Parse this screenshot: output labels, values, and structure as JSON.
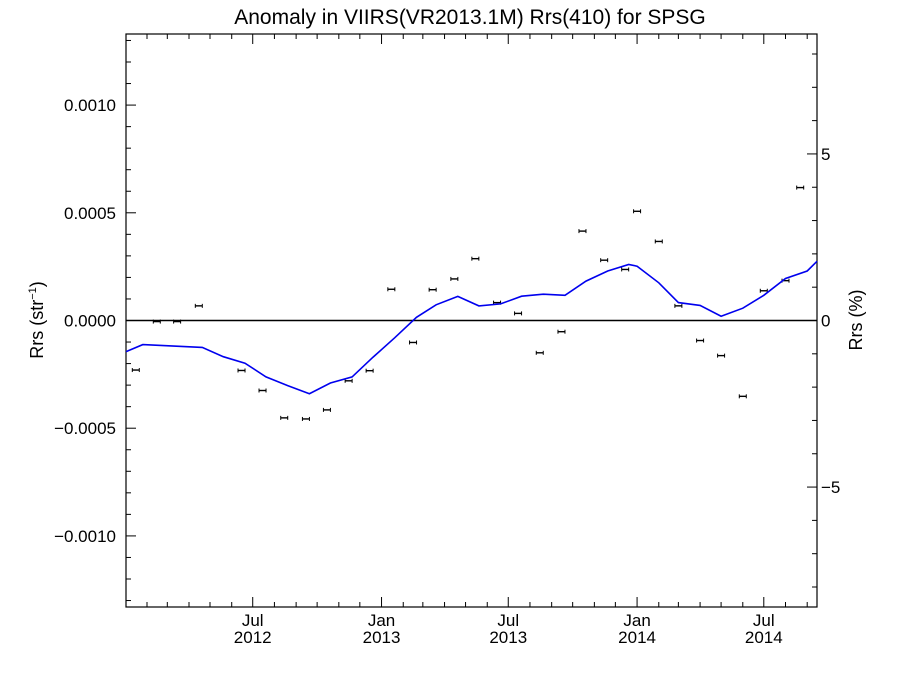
{
  "chart_data": {
    "type": "line",
    "title": "Anomaly in VIIRS(VR2013.1M) Rrs(410) for SPSG",
    "ylabel_left": "Rrs (str",
    "ylabel_left_sup": "−1",
    "ylabel_left_close": ")",
    "ylabel_right": "Rrs (%)",
    "ylim_left": [
      -0.00133,
      0.00133
    ],
    "ylim_right": [
      -8.6,
      8.6
    ],
    "xlim": [
      "2012-01-02",
      "2014-09-15"
    ],
    "left_ticks": [
      {
        "value": 0.001,
        "label": "0.0010"
      },
      {
        "value": 0.0005,
        "label": "0.0005"
      },
      {
        "value": 0.0,
        "label": "0.0000"
      },
      {
        "value": -0.0005,
        "label": "−0.0005"
      },
      {
        "value": -0.001,
        "label": "−0.0010"
      }
    ],
    "right_ticks": [
      {
        "value": 5,
        "label": "5"
      },
      {
        "value": 0,
        "label": "0"
      },
      {
        "value": -5,
        "label": "−5"
      }
    ],
    "x_ticks": [
      {
        "date": "2012-07-01",
        "line1": "Jul",
        "line2": "2012"
      },
      {
        "date": "2013-01-01",
        "line1": "Jan",
        "line2": "2013"
      },
      {
        "date": "2013-07-01",
        "line1": "Jul",
        "line2": "2013"
      },
      {
        "date": "2014-01-01",
        "line1": "Jan",
        "line2": "2014"
      },
      {
        "date": "2014-07-01",
        "line1": "Jul",
        "line2": "2014"
      }
    ],
    "zero_line": 0.0,
    "series": [
      {
        "kind": "points_with_error_bars",
        "color": "#000000",
        "points": [
          {
            "x": "2012-01-16",
            "y": -0.00023
          },
          {
            "x": "2012-02-15",
            "y": -5e-06
          },
          {
            "x": "2012-03-15",
            "y": -5e-06
          },
          {
            "x": "2012-04-15",
            "y": 6.8e-05
          },
          {
            "x": "2012-06-15",
            "y": -0.000232
          },
          {
            "x": "2012-07-15",
            "y": -0.000325
          },
          {
            "x": "2012-08-15",
            "y": -0.000452
          },
          {
            "x": "2012-09-15",
            "y": -0.000457
          },
          {
            "x": "2012-10-15",
            "y": -0.000415
          },
          {
            "x": "2012-11-15",
            "y": -0.00028
          },
          {
            "x": "2012-12-15",
            "y": -0.000233
          },
          {
            "x": "2013-01-15",
            "y": 0.000145
          },
          {
            "x": "2013-02-15",
            "y": -0.000102
          },
          {
            "x": "2013-03-15",
            "y": 0.000143
          },
          {
            "x": "2013-04-15",
            "y": 0.000193
          },
          {
            "x": "2013-05-15",
            "y": 0.000287
          },
          {
            "x": "2013-06-15",
            "y": 8.3e-05
          },
          {
            "x": "2013-07-15",
            "y": 3.3e-05
          },
          {
            "x": "2013-08-15",
            "y": -0.00015
          },
          {
            "x": "2013-09-15",
            "y": -5.2e-05
          },
          {
            "x": "2013-10-15",
            "y": 0.000415
          },
          {
            "x": "2013-11-15",
            "y": 0.00028
          },
          {
            "x": "2013-12-15",
            "y": 0.000237
          },
          {
            "x": "2014-01-01",
            "y": 0.000507
          },
          {
            "x": "2014-02-01",
            "y": 0.000367
          },
          {
            "x": "2014-03-01",
            "y": 6.8e-05
          },
          {
            "x": "2014-04-01",
            "y": -9.3e-05
          },
          {
            "x": "2014-05-01",
            "y": -0.000163
          },
          {
            "x": "2014-06-01",
            "y": -0.000352
          },
          {
            "x": "2014-07-01",
            "y": 0.000138
          },
          {
            "x": "2014-08-01",
            "y": 0.000185
          },
          {
            "x": "2014-08-22",
            "y": 0.000617
          }
        ]
      },
      {
        "kind": "line",
        "color": "#0000ee",
        "points": [
          {
            "x": "2012-01-02",
            "y": -0.000145
          },
          {
            "x": "2012-01-26",
            "y": -0.000112
          },
          {
            "x": "2012-04-20",
            "y": -0.000125
          },
          {
            "x": "2012-05-20",
            "y": -0.000168
          },
          {
            "x": "2012-06-20",
            "y": -0.000198
          },
          {
            "x": "2012-07-20",
            "y": -0.000262
          },
          {
            "x": "2012-08-20",
            "y": -0.000302
          },
          {
            "x": "2012-09-20",
            "y": -0.00034
          },
          {
            "x": "2012-10-20",
            "y": -0.00029
          },
          {
            "x": "2012-11-20",
            "y": -0.000262
          },
          {
            "x": "2012-12-20",
            "y": -0.00017
          },
          {
            "x": "2013-01-20",
            "y": -8e-05
          },
          {
            "x": "2013-02-20",
            "y": 1.5e-05
          },
          {
            "x": "2013-03-20",
            "y": 7.3e-05
          },
          {
            "x": "2013-04-20",
            "y": 0.000112
          },
          {
            "x": "2013-05-20",
            "y": 6.8e-05
          },
          {
            "x": "2013-06-20",
            "y": 7.7e-05
          },
          {
            "x": "2013-07-20",
            "y": 0.000113
          },
          {
            "x": "2013-08-20",
            "y": 0.000122
          },
          {
            "x": "2013-09-20",
            "y": 0.000117
          },
          {
            "x": "2013-10-20",
            "y": 0.000183
          },
          {
            "x": "2013-11-20",
            "y": 0.00023
          },
          {
            "x": "2013-12-20",
            "y": 0.00026
          },
          {
            "x": "2014-01-01",
            "y": 0.000252
          },
          {
            "x": "2014-02-01",
            "y": 0.000175
          },
          {
            "x": "2014-03-01",
            "y": 8.3e-05
          },
          {
            "x": "2014-04-01",
            "y": 7e-05
          },
          {
            "x": "2014-05-01",
            "y": 2e-05
          },
          {
            "x": "2014-06-01",
            "y": 5.7e-05
          },
          {
            "x": "2014-07-01",
            "y": 0.000117
          },
          {
            "x": "2014-08-01",
            "y": 0.000195
          },
          {
            "x": "2014-09-01",
            "y": 0.00023
          },
          {
            "x": "2014-09-15",
            "y": 0.000275
          }
        ]
      }
    ]
  }
}
